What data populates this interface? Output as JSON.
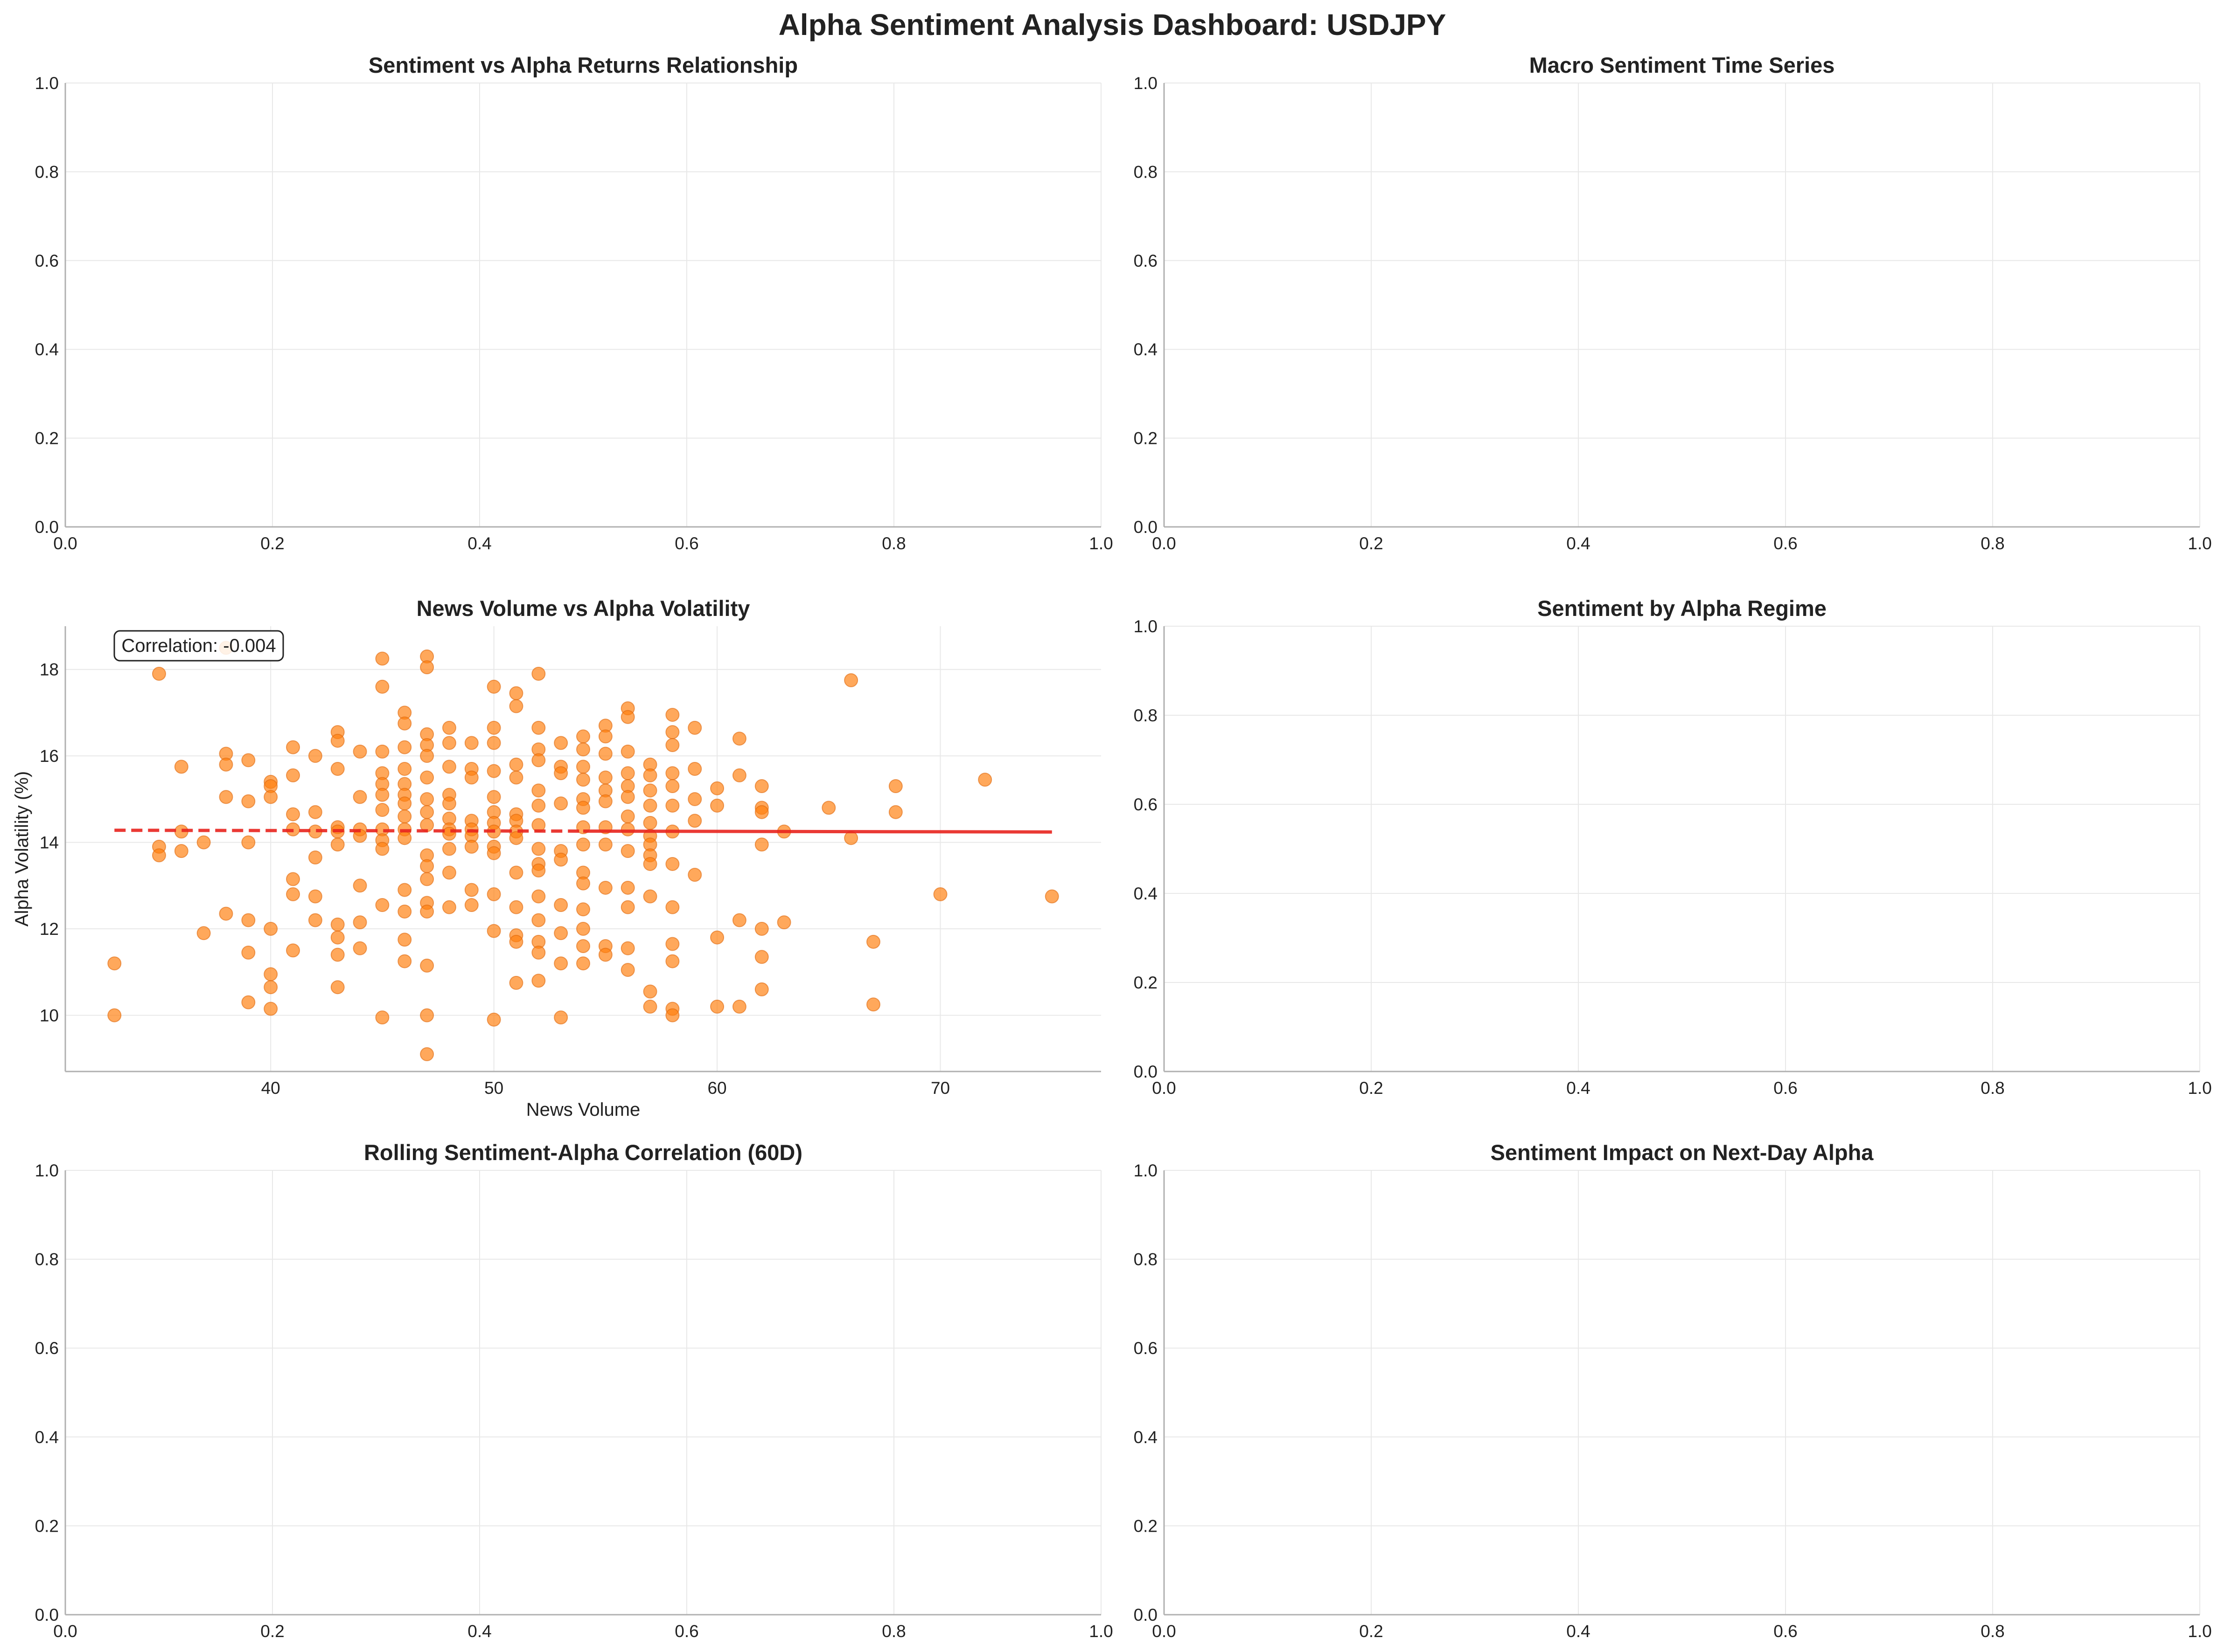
{
  "suptitle": "Alpha Sentiment Analysis Dashboard: USDJPY",
  "colors": {
    "accent": "#ff7f0e",
    "trend": "#e8231e",
    "grid": "#e8e8e8",
    "spine": "#b0b0b0"
  },
  "chart_data": [
    {
      "id": "sentiment-vs-alpha",
      "type": "scatter",
      "title": "Sentiment vs Alpha Returns Relationship",
      "xlim": [
        0,
        1
      ],
      "ylim": [
        0,
        1
      ],
      "xticks": [
        "0.0",
        "0.2",
        "0.4",
        "0.6",
        "0.8",
        "1.0"
      ],
      "yticks": [
        "0.0",
        "0.2",
        "0.4",
        "0.6",
        "0.8",
        "1.0"
      ],
      "points": []
    },
    {
      "id": "macro-sentiment",
      "type": "line",
      "title": "Macro Sentiment Time Series",
      "xlim": [
        0,
        1
      ],
      "ylim": [
        0,
        1
      ],
      "xticks": [
        "0.0",
        "0.2",
        "0.4",
        "0.6",
        "0.8",
        "1.0"
      ],
      "yticks": [
        "0.0",
        "0.2",
        "0.4",
        "0.6",
        "0.8",
        "1.0"
      ],
      "points": []
    },
    {
      "id": "news-volume-vs-volatility",
      "type": "scatter",
      "title": "News Volume vs Alpha Volatility",
      "xlabel": "News Volume",
      "ylabel": "Alpha Volatility (%)",
      "xlim": [
        30.8,
        77.2
      ],
      "ylim": [
        8.7,
        19.0
      ],
      "xticks": [
        "40",
        "50",
        "60",
        "70"
      ],
      "xtick_values": [
        40,
        50,
        60,
        70
      ],
      "yticks": [
        "10",
        "12",
        "14",
        "16",
        "18"
      ],
      "ytick_values": [
        10,
        12,
        14,
        16,
        18
      ],
      "annotation": "Correlation: -0.004",
      "trend_line": {
        "x": [
          33,
          75
        ],
        "y": [
          14.28,
          14.24
        ]
      },
      "points": [
        [
          33,
          11.2
        ],
        [
          33,
          10.0
        ],
        [
          35,
          17.9
        ],
        [
          35,
          13.9
        ],
        [
          35,
          13.7
        ],
        [
          36,
          15.75
        ],
        [
          36,
          14.25
        ],
        [
          36,
          13.8
        ],
        [
          37,
          11.9
        ],
        [
          37,
          14.0
        ],
        [
          38,
          16.05
        ],
        [
          38,
          15.8
        ],
        [
          38,
          15.05
        ],
        [
          38,
          12.35
        ],
        [
          38,
          18.5
        ],
        [
          39,
          15.9
        ],
        [
          39,
          14.95
        ],
        [
          39,
          14.0
        ],
        [
          39,
          12.2
        ],
        [
          39,
          11.45
        ],
        [
          39,
          10.3
        ],
        [
          40,
          15.4
        ],
        [
          40,
          15.3
        ],
        [
          40,
          15.05
        ],
        [
          40,
          12.0
        ],
        [
          40,
          10.95
        ],
        [
          40,
          10.65
        ],
        [
          40,
          10.15
        ],
        [
          41,
          16.2
        ],
        [
          41,
          15.55
        ],
        [
          41,
          14.65
        ],
        [
          41,
          14.3
        ],
        [
          41,
          13.15
        ],
        [
          41,
          12.8
        ],
        [
          41,
          11.5
        ],
        [
          42,
          16.0
        ],
        [
          42,
          14.7
        ],
        [
          42,
          14.25
        ],
        [
          42,
          13.65
        ],
        [
          42,
          12.75
        ],
        [
          42,
          12.2
        ],
        [
          43,
          16.55
        ],
        [
          43,
          16.35
        ],
        [
          43,
          15.7
        ],
        [
          43,
          14.35
        ],
        [
          43,
          14.25
        ],
        [
          43,
          13.95
        ],
        [
          43,
          12.1
        ],
        [
          43,
          11.8
        ],
        [
          43,
          11.4
        ],
        [
          43,
          10.65
        ],
        [
          44,
          16.1
        ],
        [
          44,
          15.05
        ],
        [
          44,
          14.3
        ],
        [
          44,
          14.15
        ],
        [
          44,
          13.0
        ],
        [
          44,
          12.15
        ],
        [
          44,
          11.55
        ],
        [
          45,
          18.25
        ],
        [
          45,
          17.6
        ],
        [
          45,
          16.1
        ],
        [
          45,
          15.6
        ],
        [
          45,
          15.35
        ],
        [
          45,
          15.1
        ],
        [
          45,
          14.75
        ],
        [
          45,
          14.3
        ],
        [
          45,
          14.05
        ],
        [
          45,
          13.85
        ],
        [
          45,
          12.55
        ],
        [
          45,
          9.95
        ],
        [
          46,
          17.0
        ],
        [
          46,
          16.75
        ],
        [
          46,
          16.2
        ],
        [
          46,
          15.7
        ],
        [
          46,
          15.35
        ],
        [
          46,
          15.1
        ],
        [
          46,
          14.9
        ],
        [
          46,
          14.6
        ],
        [
          46,
          14.3
        ],
        [
          46,
          14.1
        ],
        [
          46,
          12.9
        ],
        [
          46,
          12.4
        ],
        [
          46,
          11.75
        ],
        [
          46,
          11.25
        ],
        [
          47,
          18.3
        ],
        [
          47,
          18.05
        ],
        [
          47,
          16.5
        ],
        [
          47,
          16.25
        ],
        [
          47,
          16.0
        ],
        [
          47,
          15.5
        ],
        [
          47,
          15.0
        ],
        [
          47,
          14.7
        ],
        [
          47,
          14.4
        ],
        [
          47,
          13.7
        ],
        [
          47,
          13.45
        ],
        [
          47,
          13.15
        ],
        [
          47,
          12.6
        ],
        [
          47,
          12.4
        ],
        [
          47,
          11.15
        ],
        [
          47,
          10.0
        ],
        [
          47,
          9.1
        ],
        [
          48,
          16.65
        ],
        [
          48,
          16.3
        ],
        [
          48,
          15.75
        ],
        [
          48,
          15.1
        ],
        [
          48,
          14.9
        ],
        [
          48,
          14.55
        ],
        [
          48,
          14.3
        ],
        [
          48,
          14.2
        ],
        [
          48,
          13.85
        ],
        [
          48,
          13.3
        ],
        [
          48,
          12.5
        ],
        [
          49,
          16.3
        ],
        [
          49,
          15.7
        ],
        [
          49,
          15.5
        ],
        [
          49,
          14.5
        ],
        [
          49,
          14.3
        ],
        [
          49,
          14.15
        ],
        [
          49,
          13.9
        ],
        [
          49,
          12.9
        ],
        [
          49,
          12.55
        ],
        [
          50,
          17.6
        ],
        [
          50,
          16.65
        ],
        [
          50,
          16.3
        ],
        [
          50,
          15.65
        ],
        [
          50,
          15.05
        ],
        [
          50,
          14.7
        ],
        [
          50,
          14.45
        ],
        [
          50,
          14.25
        ],
        [
          50,
          13.9
        ],
        [
          50,
          13.75
        ],
        [
          50,
          12.8
        ],
        [
          50,
          11.95
        ],
        [
          50,
          9.9
        ],
        [
          51,
          17.45
        ],
        [
          51,
          17.15
        ],
        [
          51,
          15.8
        ],
        [
          51,
          15.5
        ],
        [
          51,
          14.65
        ],
        [
          51,
          14.5
        ],
        [
          51,
          14.25
        ],
        [
          51,
          14.1
        ],
        [
          51,
          13.3
        ],
        [
          51,
          12.5
        ],
        [
          51,
          11.85
        ],
        [
          51,
          11.7
        ],
        [
          51,
          10.75
        ],
        [
          52,
          17.9
        ],
        [
          52,
          16.65
        ],
        [
          52,
          16.15
        ],
        [
          52,
          15.9
        ],
        [
          52,
          15.2
        ],
        [
          52,
          14.85
        ],
        [
          52,
          14.4
        ],
        [
          52,
          13.85
        ],
        [
          52,
          13.5
        ],
        [
          52,
          13.35
        ],
        [
          52,
          12.75
        ],
        [
          52,
          12.2
        ],
        [
          52,
          11.7
        ],
        [
          52,
          11.45
        ],
        [
          52,
          10.8
        ],
        [
          53,
          16.3
        ],
        [
          53,
          15.75
        ],
        [
          53,
          15.6
        ],
        [
          53,
          14.9
        ],
        [
          53,
          13.8
        ],
        [
          53,
          13.6
        ],
        [
          53,
          12.55
        ],
        [
          53,
          11.9
        ],
        [
          53,
          11.2
        ],
        [
          53,
          9.95
        ],
        [
          54,
          16.45
        ],
        [
          54,
          16.15
        ],
        [
          54,
          15.75
        ],
        [
          54,
          15.45
        ],
        [
          54,
          15.0
        ],
        [
          54,
          14.8
        ],
        [
          54,
          14.35
        ],
        [
          54,
          13.95
        ],
        [
          54,
          13.3
        ],
        [
          54,
          13.05
        ],
        [
          54,
          12.45
        ],
        [
          54,
          12.0
        ],
        [
          54,
          11.6
        ],
        [
          54,
          11.2
        ],
        [
          55,
          16.7
        ],
        [
          55,
          16.45
        ],
        [
          55,
          16.05
        ],
        [
          55,
          15.5
        ],
        [
          55,
          15.2
        ],
        [
          55,
          14.95
        ],
        [
          55,
          14.35
        ],
        [
          55,
          13.95
        ],
        [
          55,
          12.95
        ],
        [
          55,
          11.6
        ],
        [
          55,
          11.4
        ],
        [
          56,
          17.1
        ],
        [
          56,
          16.9
        ],
        [
          56,
          16.1
        ],
        [
          56,
          15.6
        ],
        [
          56,
          15.3
        ],
        [
          56,
          15.05
        ],
        [
          56,
          14.6
        ],
        [
          56,
          14.3
        ],
        [
          56,
          13.8
        ],
        [
          56,
          12.95
        ],
        [
          56,
          12.5
        ],
        [
          56,
          11.55
        ],
        [
          56,
          11.05
        ],
        [
          57,
          15.8
        ],
        [
          57,
          15.55
        ],
        [
          57,
          15.2
        ],
        [
          57,
          14.85
        ],
        [
          57,
          14.45
        ],
        [
          57,
          14.15
        ],
        [
          57,
          13.95
        ],
        [
          57,
          13.7
        ],
        [
          57,
          13.5
        ],
        [
          57,
          12.75
        ],
        [
          57,
          10.55
        ],
        [
          57,
          10.2
        ],
        [
          58,
          16.95
        ],
        [
          58,
          16.55
        ],
        [
          58,
          16.25
        ],
        [
          58,
          15.6
        ],
        [
          58,
          15.3
        ],
        [
          58,
          14.85
        ],
        [
          58,
          14.25
        ],
        [
          58,
          13.5
        ],
        [
          58,
          12.5
        ],
        [
          58,
          11.65
        ],
        [
          58,
          11.25
        ],
        [
          58,
          10.15
        ],
        [
          58,
          10.0
        ],
        [
          59,
          16.65
        ],
        [
          59,
          15.7
        ],
        [
          59,
          15.0
        ],
        [
          59,
          14.5
        ],
        [
          59,
          13.25
        ],
        [
          60,
          15.25
        ],
        [
          60,
          14.85
        ],
        [
          60,
          11.8
        ],
        [
          60,
          10.2
        ],
        [
          61,
          16.4
        ],
        [
          61,
          15.55
        ],
        [
          61,
          12.2
        ],
        [
          61,
          10.2
        ],
        [
          62,
          15.3
        ],
        [
          62,
          14.8
        ],
        [
          62,
          14.7
        ],
        [
          62,
          13.95
        ],
        [
          62,
          12.0
        ],
        [
          62,
          11.35
        ],
        [
          62,
          10.6
        ],
        [
          63,
          14.25
        ],
        [
          63,
          12.15
        ],
        [
          65,
          14.8
        ],
        [
          66,
          17.75
        ],
        [
          66,
          14.1
        ],
        [
          67,
          11.7
        ],
        [
          67,
          10.25
        ],
        [
          68,
          15.3
        ],
        [
          68,
          14.7
        ],
        [
          70,
          12.8
        ],
        [
          72,
          15.45
        ],
        [
          75,
          12.75
        ]
      ]
    },
    {
      "id": "sentiment-by-regime",
      "type": "bar",
      "title": "Sentiment by Alpha Regime",
      "xlim": [
        0,
        1
      ],
      "ylim": [
        0,
        1
      ],
      "xticks": [
        "0.0",
        "0.2",
        "0.4",
        "0.6",
        "0.8",
        "1.0"
      ],
      "yticks": [
        "0.0",
        "0.2",
        "0.4",
        "0.6",
        "0.8",
        "1.0"
      ],
      "points": []
    },
    {
      "id": "rolling-correlation",
      "type": "line",
      "title": "Rolling Sentiment-Alpha Correlation (60D)",
      "xlim": [
        0,
        1
      ],
      "ylim": [
        0,
        1
      ],
      "xticks": [
        "0.0",
        "0.2",
        "0.4",
        "0.6",
        "0.8",
        "1.0"
      ],
      "yticks": [
        "0.0",
        "0.2",
        "0.4",
        "0.6",
        "0.8",
        "1.0"
      ],
      "points": []
    },
    {
      "id": "sentiment-impact",
      "type": "bar",
      "title": "Sentiment Impact on Next-Day Alpha",
      "xlim": [
        0,
        1
      ],
      "ylim": [
        0,
        1
      ],
      "xticks": [
        "0.0",
        "0.2",
        "0.4",
        "0.6",
        "0.8",
        "1.0"
      ],
      "yticks": [
        "0.0",
        "0.2",
        "0.4",
        "0.6",
        "0.8",
        "1.0"
      ],
      "points": []
    }
  ]
}
